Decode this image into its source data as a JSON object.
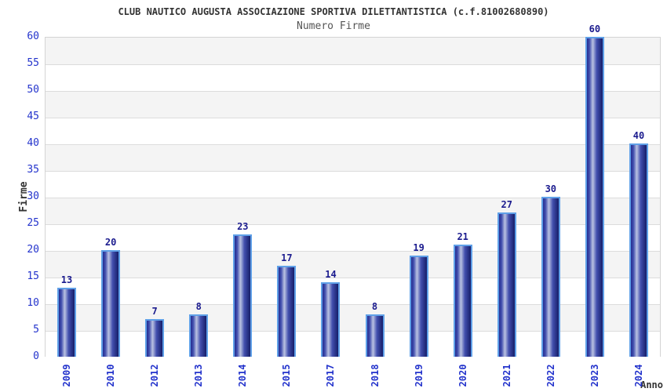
{
  "title": "CLUB NAUTICO AUGUSTA ASSOCIAZIONE SPORTIVA DILETTANTISTICA (c.f.81002680890)",
  "subtitle": "Numero Firme",
  "chart_data": {
    "type": "bar",
    "title": "Numero Firme",
    "categories": [
      "2009",
      "2010",
      "2012",
      "2013",
      "2014",
      "2015",
      "2017",
      "2018",
      "2019",
      "2020",
      "2021",
      "2022",
      "2023",
      "2024"
    ],
    "values": [
      13,
      20,
      7,
      8,
      23,
      17,
      14,
      8,
      19,
      21,
      27,
      30,
      60,
      40
    ],
    "xlabel": "Anno",
    "ylabel": "Firme",
    "ylim": [
      0,
      60
    ],
    "ytick_step": 5,
    "grid": "horizontal alternating bands",
    "legend": false
  },
  "colors": {
    "bar_gradient_dark_left": "#252d8f",
    "bar_gradient_mid": "#424fae",
    "bar_gradient_highlight": "#bac2e2",
    "bar_gradient_dark_right": "#161d68",
    "bar_border": "#5fa0e8",
    "band_gray": "#f4f4f4",
    "band_white": "#ffffff",
    "gridline": "#dcdcdc",
    "tick_label": "#2333cc",
    "value_label": "#1b1b8e",
    "title_text": "#333333",
    "subtitle_text": "#555555",
    "axis_label_text": "#333333"
  }
}
